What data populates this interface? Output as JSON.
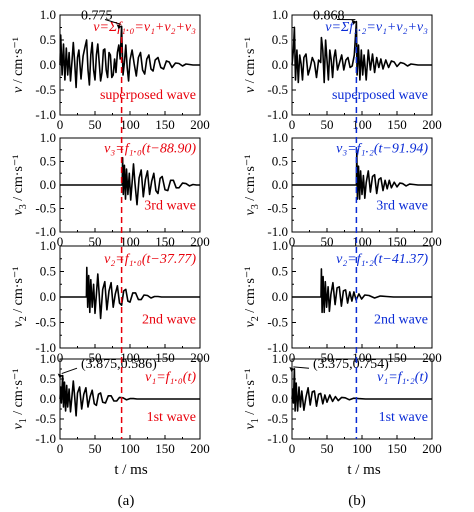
{
  "figure": {
    "panel_labels": [
      "(a)",
      "(b)"
    ],
    "x_axis_label": "t / ms"
  },
  "chart_data": [
    {
      "type": "line",
      "column": 0,
      "row": 0,
      "color": "#000000",
      "ylabel_prefix": "v",
      "ylabel_sub": "",
      "ylabel_units": " / cm·s⁻¹",
      "xlim": [
        0,
        200
      ],
      "ylim": [
        -1.0,
        1.0
      ],
      "xticks": [
        "0",
        "50",
        "100",
        "150",
        "200"
      ],
      "yticks": [
        "1.0",
        "0.5",
        "0.0",
        "-0.5",
        "-1.0"
      ],
      "annotation_color": "#e8000b",
      "formula": "v=Σf₁.₀=v₁+v₂+v₃",
      "wave_label": "superposed wave",
      "peak_label": "0.775",
      "peak": {
        "x": 88,
        "y": 0.775
      },
      "peak_label_pos": {
        "x": 30,
        "y": 0.87
      },
      "x": [
        0,
        1,
        3,
        5,
        7,
        9,
        11,
        13,
        15,
        17,
        19,
        21,
        23,
        25,
        27,
        30,
        33,
        36,
        38,
        40,
        42,
        44,
        46,
        48,
        50,
        52,
        54,
        56,
        58,
        60,
        62,
        64,
        66,
        68,
        70,
        72,
        74,
        76,
        78,
        80,
        82,
        84,
        86,
        88,
        90,
        92,
        94,
        96,
        98,
        100,
        103,
        106,
        109,
        112,
        115,
        118,
        121,
        124,
        127,
        130,
        133,
        136,
        140,
        144,
        148,
        152,
        156,
        160,
        165,
        170,
        175,
        180,
        185,
        190,
        195,
        200
      ],
      "y": [
        0,
        0.6,
        -0.2,
        0.42,
        -0.3,
        0.34,
        -0.2,
        0.25,
        -0.32,
        0.05,
        0.45,
        0.05,
        -0.45,
        0.15,
        0.3,
        -0.28,
        0.18,
        0.38,
        0.5,
        -0.1,
        -0.4,
        0.2,
        0.45,
        -0.1,
        -0.3,
        0.2,
        0.42,
        0.05,
        -0.32,
        -0.15,
        0.3,
        0.32,
        -0.1,
        -0.25,
        0.25,
        0.2,
        -0.25,
        -0.2,
        0.12,
        -0.15,
        0.25,
        0.4,
        0.12,
        0.775,
        -0.2,
        0.05,
        0.4,
        -0.05,
        -0.32,
        0.1,
        0.3,
        0.02,
        -0.22,
        0.15,
        0.25,
        -0.1,
        -0.18,
        0.12,
        0.2,
        -0.08,
        -0.12,
        0.1,
        0.15,
        -0.05,
        -0.08,
        0.08,
        0.06,
        -0.05,
        0.04,
        0.03,
        -0.02,
        0.02,
        0.01,
        0,
        0,
        0
      ]
    },
    {
      "type": "line",
      "column": 0,
      "row": 1,
      "color": "#000000",
      "ylabel_prefix": "v",
      "ylabel_sub": "3",
      "ylabel_units": " / cm·s⁻¹",
      "xlim": [
        0,
        200
      ],
      "ylim": [
        -1.0,
        1.0
      ],
      "xticks": [
        "0",
        "50",
        "100",
        "150",
        "200"
      ],
      "yticks": [
        "1.0",
        "0.5",
        "0.0",
        "-0.5",
        "-1.0"
      ],
      "annotation_color": "#e8000b",
      "formula": "v₃=f₁.₀(t−88.90)",
      "wave_label": "3rd wave",
      "x": [
        0,
        88.9,
        89.4,
        90.5,
        92,
        93.5,
        95,
        97,
        99,
        101,
        103,
        105,
        107,
        110,
        113,
        116,
        119,
        122,
        125,
        128,
        131,
        134,
        137,
        140,
        143,
        146,
        150,
        154,
        158,
        162,
        166,
        170,
        175,
        180,
        185,
        190,
        195,
        200
      ],
      "y": [
        0,
        0,
        0.58,
        -0.2,
        0.42,
        -0.3,
        0.34,
        -0.2,
        0.25,
        -0.32,
        0.05,
        0.45,
        0.05,
        -0.42,
        0.15,
        0.32,
        -0.25,
        0.12,
        0.3,
        -0.2,
        0.08,
        0.25,
        -0.12,
        -0.18,
        0.14,
        0.18,
        -0.1,
        -0.12,
        0.1,
        0.1,
        -0.06,
        -0.06,
        0.04,
        0.03,
        -0.02,
        0.01,
        0,
        0
      ]
    },
    {
      "type": "line",
      "column": 0,
      "row": 2,
      "color": "#000000",
      "ylabel_prefix": "v",
      "ylabel_sub": "2",
      "ylabel_units": " / cm·s⁻¹",
      "xlim": [
        0,
        200
      ],
      "ylim": [
        -1.0,
        1.0
      ],
      "xticks": [
        "0",
        "50",
        "100",
        "150",
        "200"
      ],
      "yticks": [
        "1.0",
        "0.5",
        "0.0",
        "-0.5",
        "-1.0"
      ],
      "annotation_color": "#e8000b",
      "formula": "v₂=f₁.₀(t−37.77)",
      "wave_label": "2nd wave",
      "x": [
        0,
        37.77,
        38.3,
        39.5,
        41,
        42.5,
        44,
        46,
        48,
        50,
        52,
        54,
        56,
        58,
        61,
        64,
        67,
        70,
        73,
        76,
        79,
        82,
        85,
        88,
        91,
        94,
        97,
        100,
        104,
        108,
        112,
        116,
        120,
        125,
        130,
        135,
        140,
        145,
        150,
        155,
        160,
        170,
        180,
        190,
        200
      ],
      "y": [
        0,
        0,
        0.58,
        -0.2,
        0.42,
        -0.3,
        0.34,
        -0.2,
        0.25,
        -0.32,
        0.05,
        0.45,
        0.05,
        -0.42,
        0.15,
        0.3,
        -0.25,
        0.12,
        0.28,
        -0.2,
        0.06,
        0.22,
        -0.12,
        -0.16,
        0.12,
        0.15,
        -0.08,
        -0.1,
        0.08,
        0.08,
        -0.05,
        -0.05,
        0.04,
        0.03,
        -0.02,
        0.01,
        0.01,
        0,
        0,
        0,
        0,
        0,
        0,
        0,
        0
      ]
    },
    {
      "type": "line",
      "column": 0,
      "row": 3,
      "color": "#000000",
      "ylabel_prefix": "v",
      "ylabel_sub": "1",
      "ylabel_units": " / cm·s⁻¹",
      "xlim": [
        0,
        200
      ],
      "ylim": [
        -1.0,
        1.0
      ],
      "xticks": [
        "0",
        "50",
        "100",
        "150",
        "200"
      ],
      "yticks": [
        "1.0",
        "0.5",
        "0.0",
        "-0.5",
        "-1.0"
      ],
      "annotation_color": "#e8000b",
      "formula": "v₁=f₁.₀(t)",
      "wave_label": "1st wave",
      "peak_label": "(3.875,0.586)",
      "peak": {
        "x": 3.875,
        "y": 0.586
      },
      "peak_label_pos": {
        "x": 30,
        "y": 0.72
      },
      "x": [
        0,
        1,
        2,
        3,
        3.875,
        5,
        6.5,
        8,
        9.5,
        11,
        13,
        15,
        17,
        19,
        21,
        23,
        25,
        28,
        31,
        34,
        37,
        40,
        43,
        46,
        49,
        52,
        55,
        58,
        61,
        65,
        69,
        73,
        77,
        81,
        85,
        90,
        95,
        100,
        105,
        110,
        120,
        130,
        140,
        150,
        160,
        170,
        180,
        190,
        200
      ],
      "y": [
        0,
        0.3,
        -0.1,
        0.3,
        0.586,
        -0.2,
        0.42,
        -0.3,
        0.34,
        -0.2,
        0.25,
        -0.32,
        0.05,
        0.45,
        0.05,
        -0.42,
        0.15,
        0.3,
        -0.25,
        0.12,
        0.28,
        -0.2,
        0.06,
        0.22,
        -0.12,
        -0.16,
        0.12,
        0.15,
        -0.08,
        -0.1,
        0.08,
        0.08,
        -0.05,
        -0.05,
        0.04,
        0.03,
        -0.02,
        0.01,
        0.01,
        0,
        0,
        0,
        0,
        0,
        0,
        0,
        0,
        0,
        0
      ]
    },
    {
      "type": "line",
      "column": 1,
      "row": 0,
      "color": "#000000",
      "ylabel_prefix": "v",
      "ylabel_sub": "",
      "ylabel_units": " / cm·s⁻¹",
      "xlim": [
        0,
        200
      ],
      "ylim": [
        -1.0,
        1.0
      ],
      "xticks": [
        "0",
        "50",
        "100",
        "150",
        "200"
      ],
      "yticks": [
        "1.0",
        "0.5",
        "0.0",
        "-0.5",
        "-1.0"
      ],
      "annotation_color": "#0a2bd6",
      "formula": "v=Σf₁.₂=v₁+v₂+v₃",
      "wave_label": "superposed wave",
      "peak_label": "0.868",
      "peak": {
        "x": 92,
        "y": 0.868
      },
      "peak_label_pos": {
        "x": 30,
        "y": 0.87
      },
      "x": [
        0,
        2,
        3.375,
        5,
        7,
        9,
        11,
        13,
        15,
        17,
        20,
        23,
        26,
        29,
        32,
        35,
        38,
        41,
        42,
        44,
        46,
        48,
        50,
        52,
        54,
        56,
        58,
        60,
        62,
        65,
        68,
        71,
        74,
        77,
        80,
        83,
        86,
        89,
        91.94,
        93,
        95,
        97,
        99,
        101,
        103,
        106,
        109,
        112,
        115,
        118,
        121,
        124,
        127,
        130,
        134,
        138,
        142,
        146,
        150,
        155,
        160,
        165,
        170,
        175,
        180,
        185,
        190,
        195,
        200
      ],
      "y": [
        0,
        0.3,
        0.754,
        -0.3,
        0.3,
        -0.35,
        0.2,
        0.02,
        -0.3,
        0.15,
        0.22,
        -0.2,
        -0.05,
        0.15,
        0.05,
        -0.25,
        0.1,
        0.05,
        0.55,
        0.3,
        -0.35,
        0.5,
        0.1,
        -0.3,
        0.3,
        0.1,
        -0.25,
        0.15,
        0.3,
        -0.1,
        0.05,
        0.2,
        -0.1,
        0.1,
        0.15,
        -0.05,
        -0.02,
        0.2,
        0.868,
        -0.2,
        0.4,
        -0.3,
        0.3,
        -0.2,
        0.2,
        -0.3,
        0.3,
        -0.1,
        0.22,
        -0.15,
        0.15,
        -0.05,
        0.12,
        -0.08,
        0.1,
        -0.05,
        0.08,
        0.06,
        -0.03,
        0.05,
        0.03,
        -0.02,
        0.02,
        0.01,
        0,
        0,
        0,
        0,
        0
      ]
    },
    {
      "type": "line",
      "column": 1,
      "row": 1,
      "color": "#000000",
      "ylabel_prefix": "v",
      "ylabel_sub": "3",
      "ylabel_units": " / cm·s⁻¹",
      "xlim": [
        0,
        200
      ],
      "ylim": [
        -1.0,
        1.0
      ],
      "xticks": [
        "0",
        "50",
        "100",
        "150",
        "200"
      ],
      "yticks": [
        "1.0",
        "0.5",
        "0.0",
        "-0.5",
        "-1.0"
      ],
      "annotation_color": "#0a2bd6",
      "formula": "v₃=f₁.₂(t−91.94)",
      "wave_label": "3rd wave",
      "x": [
        0,
        91.94,
        92.6,
        93.5,
        95,
        96.5,
        98,
        100,
        102,
        104,
        106,
        109,
        112,
        115,
        118,
        121,
        124,
        127,
        130,
        133,
        136,
        139,
        142,
        146,
        150,
        154,
        158,
        163,
        168,
        174,
        180,
        190,
        200
      ],
      "y": [
        0,
        0,
        0.75,
        -0.3,
        0.4,
        -0.3,
        0.3,
        -0.2,
        0.2,
        -0.28,
        0.05,
        0.3,
        -0.15,
        0.18,
        0.22,
        -0.18,
        0.12,
        0.15,
        -0.12,
        0.1,
        -0.08,
        0.1,
        -0.06,
        0.06,
        -0.04,
        0.04,
        0.03,
        -0.02,
        0.02,
        0.01,
        0,
        0,
        0
      ]
    },
    {
      "type": "line",
      "column": 1,
      "row": 2,
      "color": "#000000",
      "ylabel_prefix": "v",
      "ylabel_sub": "2",
      "ylabel_units": " / cm·s⁻¹",
      "xlim": [
        0,
        200
      ],
      "ylim": [
        -1.0,
        1.0
      ],
      "xticks": [
        "0",
        "50",
        "100",
        "150",
        "200"
      ],
      "yticks": [
        "1.0",
        "0.5",
        "0.0",
        "-0.5",
        "-1.0"
      ],
      "annotation_color": "#0a2bd6",
      "formula": "v₂=f₁.₂(t−41.37)",
      "wave_label": "2nd wave",
      "x": [
        0,
        41.37,
        42,
        43,
        44.5,
        46,
        47.5,
        49.5,
        51.5,
        53.5,
        55.5,
        58.5,
        61.5,
        64.5,
        67.5,
        70.5,
        73.5,
        76.5,
        79.5,
        82.5,
        85.5,
        88.5,
        91.5,
        95.5,
        99.5,
        104,
        110,
        118,
        126,
        135,
        145,
        160,
        180,
        200
      ],
      "y": [
        0,
        0,
        0.55,
        -0.3,
        0.4,
        -0.3,
        0.3,
        -0.2,
        0.2,
        -0.28,
        0.05,
        0.28,
        -0.15,
        0.18,
        0.2,
        -0.18,
        0.12,
        0.14,
        -0.12,
        0.1,
        -0.08,
        0.1,
        -0.06,
        0.06,
        -0.04,
        0.04,
        0.03,
        -0.02,
        0.02,
        0.01,
        0,
        0,
        0,
        0
      ]
    },
    {
      "type": "line",
      "column": 1,
      "row": 3,
      "color": "#000000",
      "ylabel_prefix": "v",
      "ylabel_sub": "1",
      "ylabel_units": " / cm·s⁻¹",
      "xlim": [
        0,
        200
      ],
      "ylim": [
        -1.0,
        1.0
      ],
      "xticks": [
        "0",
        "50",
        "100",
        "150",
        "200"
      ],
      "yticks": [
        "1.0",
        "0.5",
        "0.0",
        "-0.5",
        "-1.0"
      ],
      "annotation_color": "#0a2bd6",
      "formula": "v₁=f₁.₂(t)",
      "wave_label": "1st wave",
      "peak_label": "(3.375,0.754)",
      "peak": {
        "x": 3.375,
        "y": 0.754
      },
      "peak_label_pos": {
        "x": 30,
        "y": 0.72
      },
      "x": [
        0,
        1,
        2,
        3.375,
        4.5,
        6,
        8,
        10,
        12,
        14,
        17,
        20,
        23,
        26,
        29,
        32,
        35,
        38,
        41,
        44,
        47,
        50,
        54,
        58,
        62,
        66,
        71,
        76,
        82,
        88,
        95,
        105,
        120,
        140,
        160,
        180,
        200
      ],
      "y": [
        0,
        0.25,
        -0.1,
        0.754,
        -0.3,
        0.4,
        -0.3,
        0.3,
        -0.2,
        0.2,
        -0.28,
        0.05,
        0.28,
        -0.15,
        0.18,
        0.2,
        -0.18,
        0.12,
        0.14,
        -0.12,
        0.1,
        -0.08,
        0.1,
        -0.06,
        0.06,
        -0.04,
        0.04,
        0.03,
        -0.02,
        0.02,
        0.01,
        0,
        0,
        0,
        0,
        0,
        0
      ]
    }
  ]
}
